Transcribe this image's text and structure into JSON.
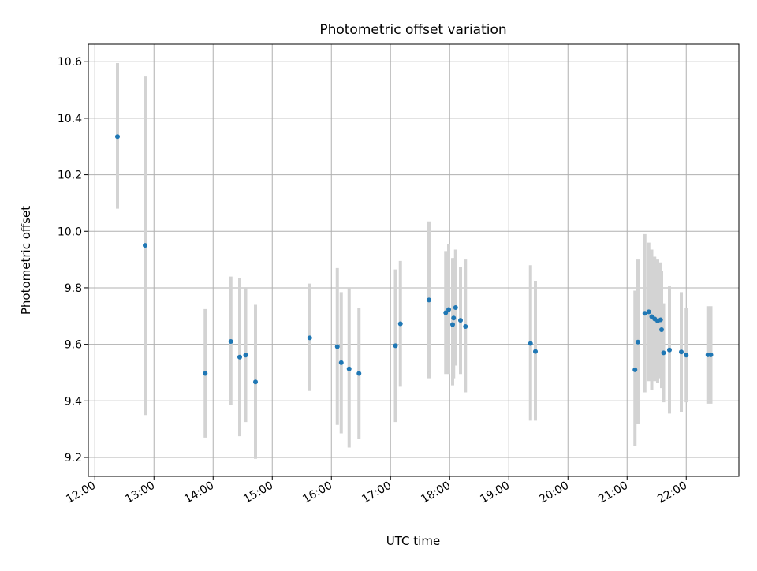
{
  "chart_data": {
    "type": "scatter",
    "title": "Photometric offset variation",
    "xlabel": "UTC time",
    "ylabel": "Photometric offset",
    "x_tick_labels": [
      "12:00",
      "13:00",
      "14:00",
      "15:00",
      "16:00",
      "17:00",
      "18:00",
      "19:00",
      "20:00",
      "21:00",
      "22:00"
    ],
    "x_ticks_hours": [
      12,
      13,
      14,
      15,
      16,
      17,
      18,
      19,
      20,
      21,
      22
    ],
    "y_ticks": [
      9.2,
      9.4,
      9.6,
      9.8,
      10.0,
      10.2,
      10.4,
      10.6
    ],
    "y_tick_labels": [
      "9.2",
      "9.4",
      "9.6",
      "9.8",
      "10.0",
      "10.2",
      "10.4",
      "10.6"
    ],
    "xlim_hours": [
      11.89,
      22.89
    ],
    "ylim": [
      9.133,
      10.662
    ],
    "grid": true,
    "marker_color": "#1f77b4",
    "errorbar_color": "#d3d3d3",
    "points": [
      {
        "t": "12:23",
        "y": 10.335,
        "lo": 10.08,
        "hi": 10.595
      },
      {
        "t": "12:51",
        "y": 9.95,
        "lo": 9.35,
        "hi": 10.55
      },
      {
        "t": "13:52",
        "y": 9.497,
        "lo": 9.27,
        "hi": 9.725
      },
      {
        "t": "14:18",
        "y": 9.61,
        "lo": 9.385,
        "hi": 9.84
      },
      {
        "t": "14:27",
        "y": 9.555,
        "lo": 9.275,
        "hi": 9.835
      },
      {
        "t": "14:33",
        "y": 9.562,
        "lo": 9.325,
        "hi": 9.8
      },
      {
        "t": "14:43",
        "y": 9.467,
        "lo": 9.195,
        "hi": 9.74
      },
      {
        "t": "15:38",
        "y": 9.623,
        "lo": 9.435,
        "hi": 9.815
      },
      {
        "t": "16:06",
        "y": 9.592,
        "lo": 9.315,
        "hi": 9.87
      },
      {
        "t": "16:10",
        "y": 9.535,
        "lo": 9.285,
        "hi": 9.785
      },
      {
        "t": "16:18",
        "y": 9.513,
        "lo": 9.235,
        "hi": 9.8
      },
      {
        "t": "16:28",
        "y": 9.497,
        "lo": 9.265,
        "hi": 9.73
      },
      {
        "t": "17:05",
        "y": 9.595,
        "lo": 9.325,
        "hi": 9.865
      },
      {
        "t": "17:10",
        "y": 9.673,
        "lo": 9.45,
        "hi": 9.895
      },
      {
        "t": "17:39",
        "y": 9.757,
        "lo": 9.48,
        "hi": 10.035
      },
      {
        "t": "17:56",
        "y": 9.712,
        "lo": 9.495,
        "hi": 9.93
      },
      {
        "t": "17:59",
        "y": 9.723,
        "lo": 9.495,
        "hi": 9.955
      },
      {
        "t": "18:03",
        "y": 9.67,
        "lo": 9.455,
        "hi": 9.905
      },
      {
        "t": "18:04",
        "y": 9.693,
        "lo": 9.48,
        "hi": 9.905
      },
      {
        "t": "18:06",
        "y": 9.73,
        "lo": 9.525,
        "hi": 9.935
      },
      {
        "t": "18:11",
        "y": 9.685,
        "lo": 9.495,
        "hi": 9.875
      },
      {
        "t": "18:16",
        "y": 9.663,
        "lo": 9.43,
        "hi": 9.9
      },
      {
        "t": "19:22",
        "y": 9.603,
        "lo": 9.33,
        "hi": 9.88
      },
      {
        "t": "19:27",
        "y": 9.575,
        "lo": 9.33,
        "hi": 9.825
      },
      {
        "t": "21:08",
        "y": 9.51,
        "lo": 9.24,
        "hi": 9.79
      },
      {
        "t": "21:11",
        "y": 9.608,
        "lo": 9.32,
        "hi": 9.9
      },
      {
        "t": "21:18",
        "y": 9.71,
        "lo": 9.43,
        "hi": 9.99
      },
      {
        "t": "21:22",
        "y": 9.715,
        "lo": 9.47,
        "hi": 9.96
      },
      {
        "t": "21:25",
        "y": 9.698,
        "lo": 9.44,
        "hi": 9.935
      },
      {
        "t": "21:28",
        "y": 9.69,
        "lo": 9.47,
        "hi": 9.91
      },
      {
        "t": "21:31",
        "y": 9.683,
        "lo": 9.465,
        "hi": 9.9
      },
      {
        "t": "21:34",
        "y": 9.687,
        "lo": 9.48,
        "hi": 9.89
      },
      {
        "t": "21:35",
        "y": 9.652,
        "lo": 9.445,
        "hi": 9.86
      },
      {
        "t": "21:37",
        "y": 9.57,
        "lo": 9.395,
        "hi": 9.745
      },
      {
        "t": "21:43",
        "y": 9.58,
        "lo": 9.355,
        "hi": 9.805
      },
      {
        "t": "21:55",
        "y": 9.573,
        "lo": 9.36,
        "hi": 9.785
      },
      {
        "t": "22:00",
        "y": 9.562,
        "lo": 9.395,
        "hi": 9.73
      },
      {
        "t": "22:22",
        "y": 9.563,
        "lo": 9.39,
        "hi": 9.735
      },
      {
        "t": "22:25",
        "y": 9.563,
        "lo": 9.39,
        "hi": 9.735
      }
    ]
  }
}
